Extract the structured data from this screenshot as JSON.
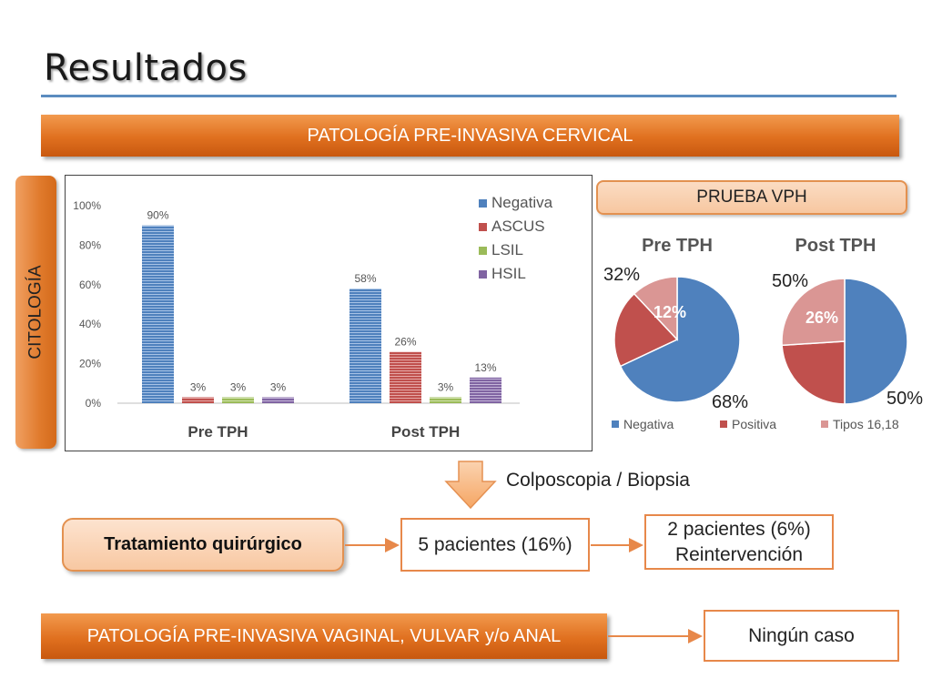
{
  "title": "Resultados",
  "banners": {
    "cervical": "PATOLOGÍA PRE-INVASIVA CERVICAL",
    "vaginal": "PATOLOGÍA PRE-INVASIVA VAGINAL, VULVAR y/o ANAL"
  },
  "side_label": "CITOLOGÍA",
  "vph_label": "PRUEBA VPH",
  "flow": {
    "colposcopia": "Colposcopia / Biopsia",
    "tratamiento": "Tratamiento quirúrgico",
    "pacientes": "5 pacientes (16%)",
    "reint_line1": "2 pacientes (6%)",
    "reint_line2": "Reintervención",
    "ninguno": "Ningún caso"
  },
  "colors": {
    "accent_orange": "#e0701f",
    "rule_blue": "#5b8cbf"
  },
  "chart_data": [
    {
      "type": "bar",
      "categories": [
        "Pre TPH",
        "Post TPH"
      ],
      "series": [
        {
          "name": "Negativa",
          "values": [
            90,
            58
          ],
          "labels": [
            "90%",
            "58%"
          ],
          "color": "#4f81bd"
        },
        {
          "name": "ASCUS",
          "values": [
            3,
            26
          ],
          "labels": [
            "3%",
            "26%"
          ],
          "color": "#c0504d"
        },
        {
          "name": "LSIL",
          "values": [
            3,
            3
          ],
          "labels": [
            "3%",
            "3%"
          ],
          "color": "#9bbb59"
        },
        {
          "name": "HSIL",
          "values": [
            3,
            13
          ],
          "labels": [
            "3%",
            "13%"
          ],
          "color": "#8064a2"
        }
      ],
      "ylim": [
        0,
        100
      ],
      "yticks": [
        "0%",
        "20%",
        "40%",
        "60%",
        "80%",
        "100%"
      ],
      "legend": "top-right",
      "grid": false
    },
    {
      "type": "pie",
      "title": "Pre TPH",
      "slices": [
        {
          "name": "Negativa",
          "value": 68,
          "label": "68%",
          "color": "#4f81bd"
        },
        {
          "name": "Positiva",
          "value": 20,
          "label": "",
          "color": "#c0504d"
        },
        {
          "name": "Tipos 16,18",
          "value": 12,
          "label": "12%",
          "color": "#da9694"
        }
      ],
      "outer_label": "32%"
    },
    {
      "type": "pie",
      "title": "Post TPH",
      "slices": [
        {
          "name": "Negativa",
          "value": 50,
          "label": "50%",
          "color": "#4f81bd"
        },
        {
          "name": "Positiva",
          "value": 24,
          "label": "",
          "color": "#c0504d"
        },
        {
          "name": "Tipos 16,18",
          "value": 26,
          "label": "26%",
          "color": "#da9694"
        }
      ],
      "outer_label": "50%"
    }
  ],
  "pie_legend": [
    "Negativa",
    "Positiva",
    "Tipos 16,18"
  ]
}
